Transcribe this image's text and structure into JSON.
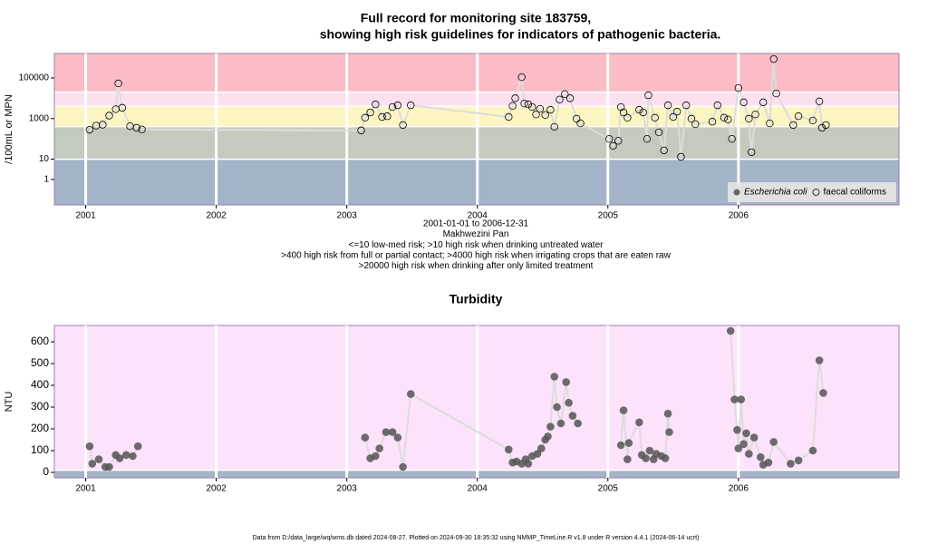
{
  "chart_data": [
    {
      "type": "line",
      "title": [
        "Full record for monitoring site 183759,",
        "showing high risk guidelines for indicators of pathogenic bacteria."
      ],
      "y_label": "/100mL or MPN",
      "notes": [
        "2001-01-01 to 2006-12-31",
        "Makhwezini Pan",
        "<=10 low-med risk; >10 high risk when drinking untreated water",
        ">400 high risk from full or partial contact; >4000 high risk when irrigating crops that are eaten raw",
        ">20000 high risk when drinking after only limited treatment"
      ],
      "log_y": true,
      "xlim": [
        2000.76,
        2007.23
      ],
      "xticks": [
        2001,
        2002,
        2003,
        2004,
        2005,
        2006
      ],
      "ylim": [
        0.056,
        1600000
      ],
      "yticks": [
        1,
        10,
        1000,
        100000
      ],
      "thresholds": [
        10,
        400,
        4000,
        20000
      ],
      "band_colors": [
        "#a3b3c8",
        "#c3cbbf",
        "#fdf6c3",
        "#fde0f0",
        "#fbbcc5"
      ],
      "legend": "bottom-right",
      "series": [
        {
          "name": "Escherichia coli",
          "marker": "filled",
          "color": "#666666",
          "x": [],
          "values": []
        },
        {
          "name": "faecal coliforms",
          "marker": "open",
          "color": "#000000",
          "x": [
            2001.03,
            2001.08,
            2001.13,
            2001.18,
            2001.23,
            2001.25,
            2001.28,
            2001.34,
            2001.39,
            2001.43,
            2003.11,
            2003.14,
            2003.18,
            2003.22,
            2003.27,
            2003.31,
            2003.35,
            2003.39,
            2003.43,
            2003.49,
            2004.24,
            2004.27,
            2004.29,
            2004.34,
            2004.36,
            2004.39,
            2004.42,
            2004.45,
            2004.48,
            2004.52,
            2004.56,
            2004.59,
            2004.63,
            2004.67,
            2004.71,
            2004.76,
            2004.79,
            2005.01,
            2005.04,
            2005.08,
            2005.1,
            2005.12,
            2005.15,
            2005.24,
            2005.27,
            2005.3,
            2005.31,
            2005.36,
            2005.39,
            2005.43,
            2005.46,
            2005.5,
            2005.53,
            2005.56,
            2005.6,
            2005.64,
            2005.67,
            2005.8,
            2005.84,
            2005.89,
            2005.92,
            2005.95,
            2006.0,
            2006.04,
            2006.08,
            2006.1,
            2006.13,
            2006.19,
            2006.24,
            2006.27,
            2006.29,
            2006.42,
            2006.46,
            2006.57,
            2006.62,
            2006.64,
            2006.67
          ],
          "values": [
            280,
            450,
            500,
            1400,
            2900,
            54000,
            3400,
            420,
            350,
            290,
            260,
            1100,
            2000,
            5000,
            1200,
            1300,
            3700,
            4500,
            480,
            4500,
            1200,
            4200,
            10000,
            110000,
            5500,
            5000,
            3700,
            1600,
            3000,
            1500,
            2700,
            390,
            8600,
            16000,
            10000,
            980,
            580,
            100,
            45,
            80,
            3700,
            2000,
            1100,
            2700,
            2000,
            100,
            14000,
            1100,
            210,
            27,
            4500,
            1200,
            2200,
            13,
            4500,
            980,
            530,
            700,
            4500,
            1100,
            900,
            100,
            32000,
            6300,
            980,
            22,
            1600,
            6300,
            580,
            850000,
            17000,
            480,
            1300,
            800,
            7000,
            350,
            480
          ]
        }
      ]
    },
    {
      "type": "line",
      "title": [
        "Turbidity"
      ],
      "y_label": "NTU",
      "log_y": false,
      "xlim": [
        2000.76,
        2007.23
      ],
      "xticks": [
        2001,
        2002,
        2003,
        2004,
        2005,
        2006
      ],
      "ylim": [
        -25,
        675
      ],
      "yticks": [
        0,
        100,
        200,
        300,
        400,
        500,
        600
      ],
      "thresholds": [
        10
      ],
      "band_colors": [
        "#a3b3c8",
        "#fde2fb"
      ],
      "series": [
        {
          "name": "turbidity",
          "marker": "filled",
          "color": "#555555",
          "x": [
            2001.03,
            2001.05,
            2001.1,
            2001.15,
            2001.18,
            2001.23,
            2001.26,
            2001.31,
            2001.36,
            2001.4,
            null,
            2003.14,
            2003.18,
            2003.22,
            2003.25,
            2003.3,
            2003.35,
            2003.39,
            2003.43,
            2003.49,
            2004.24,
            2004.27,
            2004.3,
            2004.34,
            2004.37,
            2004.39,
            2004.42,
            2004.46,
            2004.49,
            2004.52,
            2004.54,
            2004.56,
            2004.59,
            2004.61,
            2004.64,
            2004.68,
            2004.7,
            2004.73,
            2004.77,
            null,
            2005.1,
            2005.12,
            2005.15,
            2005.16,
            2005.24,
            2005.26,
            2005.29,
            2005.32,
            2005.35,
            2005.37,
            2005.41,
            2005.44,
            2005.46,
            2005.47,
            null,
            2005.94,
            2005.97,
            2005.99,
            2006.0,
            2006.02,
            2006.04,
            2006.06,
            2006.08,
            2006.12,
            2006.17,
            2006.19,
            2006.23,
            2006.27,
            2006.4,
            2006.46,
            2006.57,
            2006.62,
            2006.65
          ],
          "values": [
            120,
            40,
            60,
            25,
            25,
            80,
            65,
            80,
            75,
            120,
            null,
            160,
            65,
            75,
            110,
            185,
            185,
            160,
            25,
            360,
            105,
            45,
            50,
            40,
            60,
            40,
            75,
            85,
            110,
            150,
            165,
            210,
            440,
            300,
            225,
            415,
            320,
            260,
            225,
            null,
            125,
            285,
            60,
            135,
            230,
            80,
            65,
            100,
            60,
            85,
            75,
            65,
            270,
            185,
            null,
            650,
            335,
            195,
            110,
            335,
            130,
            180,
            85,
            160,
            70,
            35,
            45,
            140,
            40,
            55,
            100,
            515,
            365
          ]
        }
      ]
    }
  ],
  "footer": "Data from D:/data_large/wq/wms.db dated 2024-08-27. Plotted on 2024-09-30 18:35:32 using NMMP_TimeLine.R v1.8 under R version 4.4.1 (2024-06-14 ucrt)"
}
